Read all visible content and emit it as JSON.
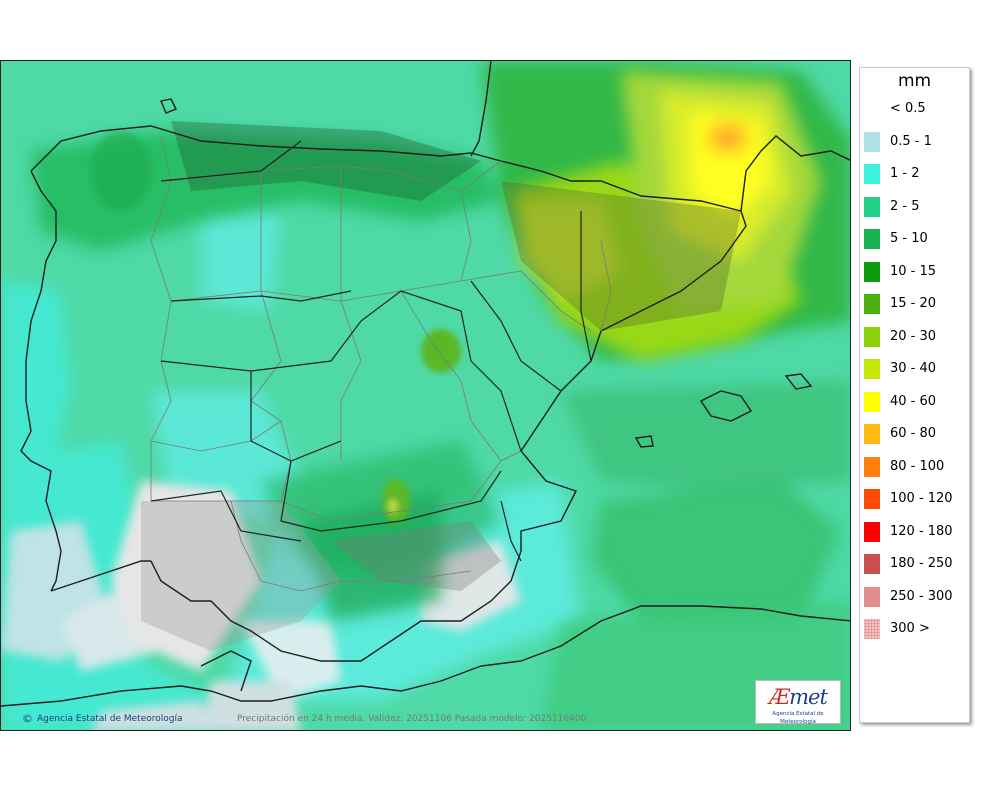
{
  "legend": {
    "unit": "mm",
    "items": [
      {
        "label": "< 0.5",
        "color": ""
      },
      {
        "label": "0.5 - 1",
        "color": "#b0dfe5"
      },
      {
        "label": "1 - 2",
        "color": "#40f0e0"
      },
      {
        "label": "2 - 5",
        "color": "#22d28a"
      },
      {
        "label": "5 - 10",
        "color": "#18b050"
      },
      {
        "label": "10 - 15",
        "color": "#0a9a0a"
      },
      {
        "label": "15 - 20",
        "color": "#4db20f"
      },
      {
        "label": "20 - 30",
        "color": "#8ed00c"
      },
      {
        "label": "30 - 40",
        "color": "#c6e605"
      },
      {
        "label": "40 - 60",
        "color": "#ffff00"
      },
      {
        "label": "60 - 80",
        "color": "#ffbb14"
      },
      {
        "label": "80 - 100",
        "color": "#ff7f0e"
      },
      {
        "label": "100 - 120",
        "color": "#ff4a08"
      },
      {
        "label": "120 - 180",
        "color": "#ff0000"
      },
      {
        "label": "180 - 250",
        "color": "#c85050"
      },
      {
        "label": "250 - 300",
        "color": "#e28c8c"
      },
      {
        "label": "300 >",
        "color": "#f3c2c2"
      }
    ]
  },
  "credit": {
    "symbol": "©",
    "text": "Agencia Estatal de Meteorología"
  },
  "footer": {
    "text": "Precipitación en 24 h media. Validez: 20251106 Pasada modelo: 2025110400"
  },
  "logo": {
    "prefix": "Æ",
    "suffix": "met",
    "subtitle": "Agencia Estatal de Meteorología"
  },
  "colors": {
    "sea": "#4fd9a6",
    "land_border": "#1e1e1e",
    "province_border": "#7a7a7a"
  }
}
